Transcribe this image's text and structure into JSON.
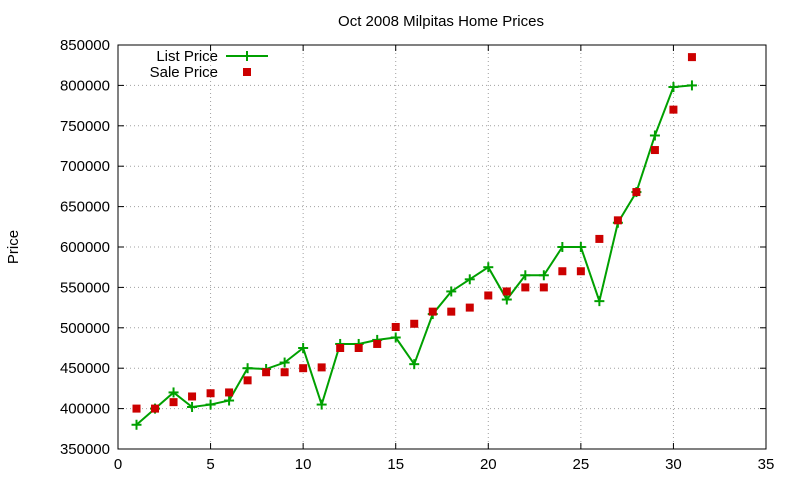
{
  "chart_data": {
    "type": "line",
    "title": "Oct 2008 Milpitas Home Prices",
    "xlabel": "",
    "ylabel": "Price",
    "xlim": [
      0,
      35
    ],
    "ylim": [
      350000,
      850000
    ],
    "xticks": [
      0,
      5,
      10,
      15,
      20,
      25,
      30,
      35
    ],
    "yticks": [
      350000,
      400000,
      450000,
      500000,
      550000,
      600000,
      650000,
      700000,
      750000,
      800000,
      850000
    ],
    "grid": true,
    "legend_position": "top-left",
    "series": [
      {
        "name": "List Price",
        "style": "line-with-plus-markers",
        "color": "#00a000",
        "x": [
          1,
          2,
          3,
          4,
          5,
          6,
          7,
          8,
          9,
          10,
          11,
          12,
          13,
          14,
          15,
          16,
          17,
          18,
          19,
          20,
          21,
          22,
          23,
          24,
          25,
          26,
          27,
          28,
          29,
          30,
          31
        ],
        "y": [
          380000,
          400000,
          420000,
          402000,
          405000,
          410000,
          450000,
          449000,
          457000,
          475000,
          405000,
          480000,
          480000,
          485000,
          488000,
          455000,
          517000,
          545000,
          560000,
          575000,
          535000,
          565000,
          565000,
          600000,
          600000,
          533000,
          630000,
          668000,
          738000,
          798000,
          800000
        ]
      },
      {
        "name": "Sale Price",
        "style": "square-markers",
        "color": "#cc0000",
        "x": [
          1,
          2,
          3,
          4,
          5,
          6,
          7,
          8,
          9,
          10,
          11,
          12,
          13,
          14,
          15,
          16,
          17,
          18,
          19,
          20,
          21,
          22,
          23,
          24,
          25,
          26,
          27,
          28,
          29,
          30,
          31
        ],
        "y": [
          400000,
          400000,
          408000,
          415000,
          419000,
          420000,
          435000,
          445000,
          445000,
          450000,
          451000,
          475000,
          475000,
          480000,
          501000,
          505000,
          520000,
          520000,
          525000,
          540000,
          545000,
          550000,
          550000,
          570000,
          570000,
          610000,
          633000,
          668000,
          720000,
          770000,
          835000
        ]
      }
    ]
  }
}
